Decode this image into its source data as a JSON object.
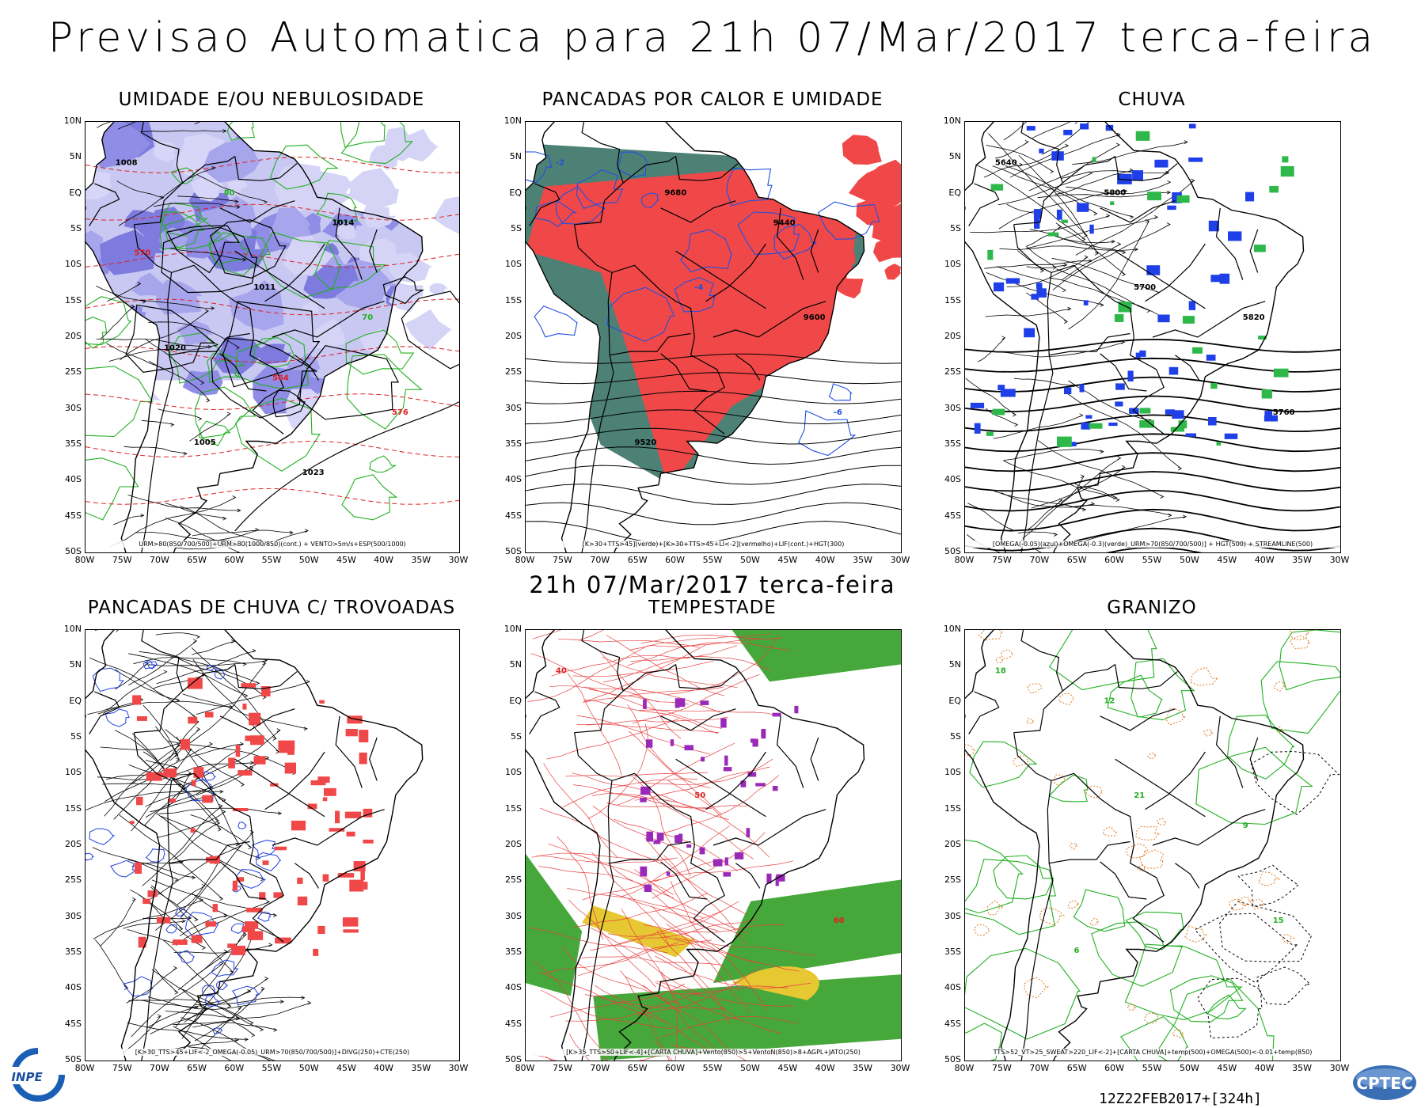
{
  "header": {
    "title": "Previsao Automatica  para 21h 07/Mar/2017 terca-feira",
    "subtitle": "21h 07/Mar/2017 terca-feira",
    "run_label": "12Z22FEB2017+[324h]"
  },
  "axes": {
    "lat_labels": [
      "10N",
      "5N",
      "EQ",
      "5S",
      "10S",
      "15S",
      "20S",
      "25S",
      "30S",
      "35S",
      "40S",
      "45S",
      "50S"
    ],
    "lon_labels": [
      "80W",
      "75W",
      "70W",
      "65W",
      "60W",
      "55W",
      "50W",
      "45W",
      "40W",
      "35W",
      "30W"
    ]
  },
  "panels": [
    {
      "title": "UMIDADE E/OU NEBULOSIDADE",
      "caption": "URM>80(850/700/500)+URM>80(1000/850)(cont.) + VENTO>5m/s+ESP(500/1000)",
      "scheme": "humidity"
    },
    {
      "title": "PANCADAS POR CALOR E UMIDADE",
      "caption": "[K>30+TTS>45](verde)+[K>30+TTS>45+LI<-2](vermelho)+LIF(cont.)+HGT(300)",
      "scheme": "heat"
    },
    {
      "title": "CHUVA",
      "caption": "[OMEGA(-0.05)(azul)+OMEGA(-0.3)(verde)_URM>70(850/700/500)] + HGT(500) + STREAMLINE(500)",
      "scheme": "rain"
    },
    {
      "title": "PANCADAS DE CHUVA C/ TROVOADAS",
      "caption": "[K>30_TTS>45+LIF<-2_OMEGA(-0.05)_URM>70(850/700/500)]+DIVG(250)+CTE(250)",
      "scheme": "showers"
    },
    {
      "title": "TEMPESTADE",
      "caption": "[K>35_TTS>50+LIF<-4]+[CARTA CHUVA]+Vento(850)>5+VentoN(850)>8+AGPL+JATO(250)",
      "scheme": "storm"
    },
    {
      "title": "GRANIZO",
      "caption": "TTS>52_VT>25_SWEAT>220_LIF<-2]+[CARTA CHUVA]+temp(500)+OMEGA(500)<-0.01+temp(850)",
      "scheme": "hail"
    }
  ],
  "contour_labels": {
    "humidity": [
      "1008",
      "1011",
      "576",
      "80",
      "70",
      "1005",
      "1014",
      "1020",
      "1023",
      "570",
      "564"
    ],
    "heat": [
      "-2",
      "-4",
      "-6",
      "9680",
      "9600",
      "9520",
      "9440"
    ],
    "rain": [
      "5640",
      "5700",
      "5760",
      "5800",
      "5820"
    ],
    "showers": [],
    "storm": [
      "40",
      "50",
      "60"
    ],
    "hail": [
      "18",
      "21",
      "15",
      "12",
      "9",
      "6"
    ]
  },
  "logos": {
    "left": "INPE",
    "right": "CPTEC"
  }
}
